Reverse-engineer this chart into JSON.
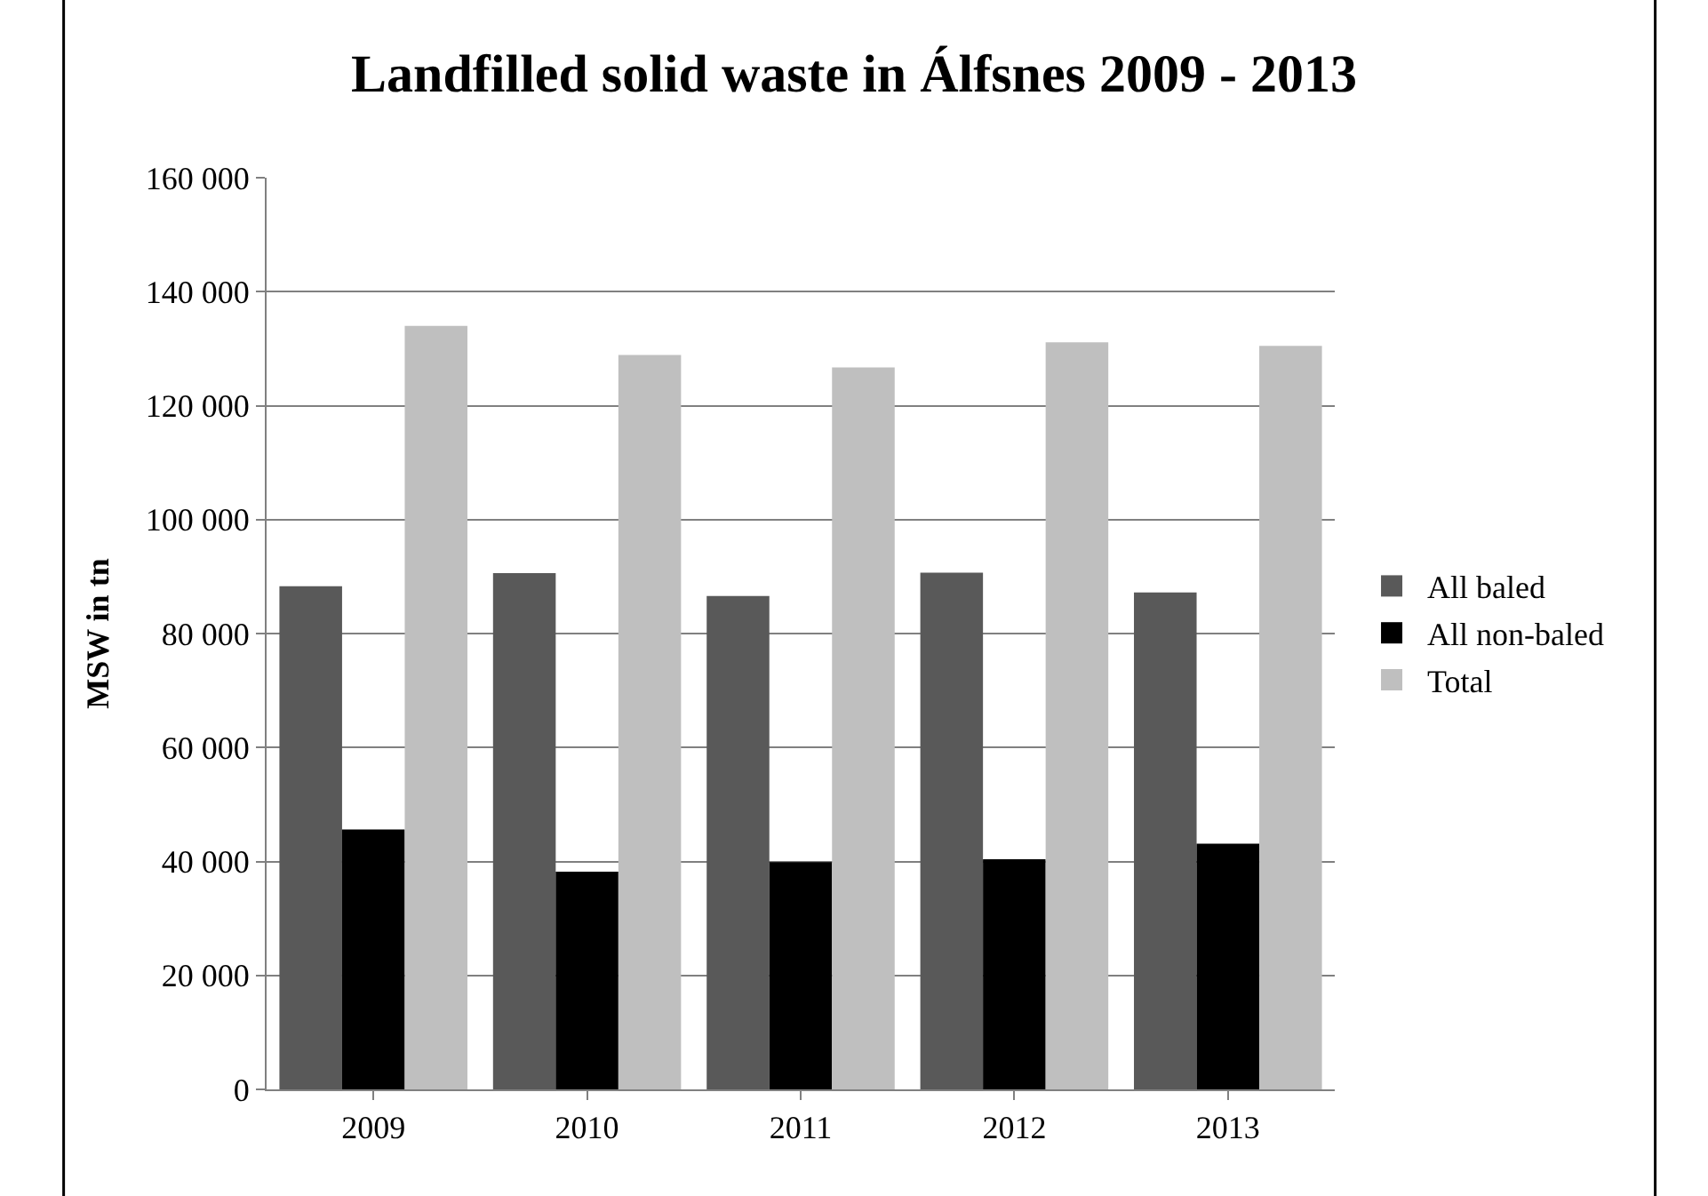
{
  "chart_data": {
    "type": "bar",
    "title": "Landfilled solid waste in Álfsnes 2009 - 2013",
    "ylabel": "MSW in tn",
    "categories": [
      "2009",
      "2010",
      "2011",
      "2012",
      "2013"
    ],
    "series": [
      {
        "name": "All baled",
        "color": "#595959",
        "values": [
          88300,
          90600,
          86600,
          90700,
          87200
        ]
      },
      {
        "name": "All non-baled",
        "color": "#000000",
        "values": [
          45600,
          38200,
          39900,
          40400,
          43100
        ]
      },
      {
        "name": "Total",
        "color": "#bfbfbf",
        "values": [
          134000,
          128900,
          126700,
          131100,
          130500
        ]
      }
    ],
    "ylim": [
      0,
      160000
    ],
    "yticks": [
      {
        "value": 0,
        "label": "0"
      },
      {
        "value": 20000,
        "label": "20 000"
      },
      {
        "value": 40000,
        "label": "40 000"
      },
      {
        "value": 60000,
        "label": "60 000"
      },
      {
        "value": 80000,
        "label": "80 000"
      },
      {
        "value": 100000,
        "label": "100 000"
      },
      {
        "value": 120000,
        "label": "120 000"
      },
      {
        "value": 140000,
        "label": "140 000"
      },
      {
        "value": 160000,
        "label": "160 000"
      }
    ],
    "grid": "y",
    "legend": "right"
  }
}
